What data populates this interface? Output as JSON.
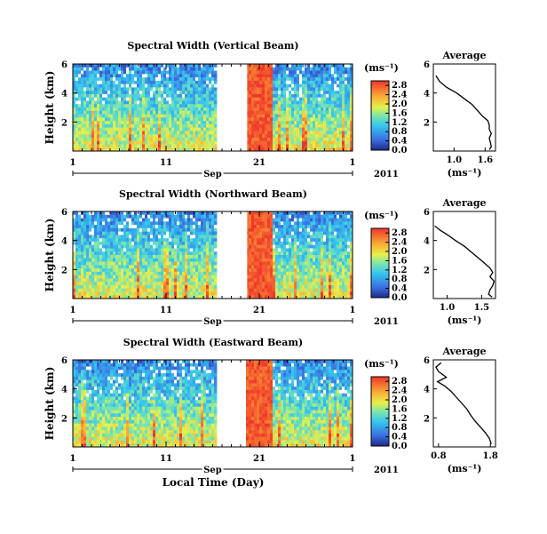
{
  "chart_data": [
    {
      "type": "heatmap",
      "title": "Spectral Width (Vertical Beam)",
      "ylabel": "Height (km)",
      "ylim": [
        0,
        6
      ],
      "yticks": [
        "6",
        "4",
        "2"
      ],
      "xticks": [
        "1",
        "11",
        "21",
        "1"
      ],
      "month_label": "Sep",
      "year_label": "2011",
      "data_gap_days": [
        15.5,
        18.7
      ],
      "colorbar": {
        "unit": "(ms⁻¹)",
        "ticks": [
          "2.8",
          "2.4",
          "2.0",
          "1.6",
          "1.2",
          "0.8",
          "0.4",
          "0.0"
        ],
        "range": [
          0,
          3.0
        ]
      },
      "average": {
        "title": "Average",
        "xlabel": "(ms⁻¹)",
        "xticks": [
          "1.0",
          "1.6"
        ],
        "xlim": [
          0.6,
          1.8
        ],
        "ylim": [
          0,
          6
        ],
        "yticks": [
          "6",
          "4",
          "2"
        ],
        "x": [
          0.65,
          0.72,
          0.85,
          1.05,
          1.2,
          1.35,
          1.45,
          1.55,
          1.65,
          1.68,
          1.68,
          1.72,
          1.68,
          1.7,
          1.72,
          1.68
        ],
        "y": [
          5.2,
          4.8,
          4.4,
          4.0,
          3.6,
          3.2,
          2.8,
          2.4,
          2.1,
          1.8,
          1.5,
          1.2,
          0.9,
          0.6,
          0.3,
          0.1
        ]
      }
    },
    {
      "type": "heatmap",
      "title": "Spectral Width (Northward Beam)",
      "ylabel": "Height (km)",
      "ylim": [
        0,
        6
      ],
      "yticks": [
        "6",
        "4",
        "2"
      ],
      "xticks": [
        "1",
        "11",
        "21",
        "1"
      ],
      "month_label": "Sep",
      "year_label": "2011",
      "data_gap_days": [
        15.5,
        18.7
      ],
      "colorbar": {
        "unit": "(ms⁻¹)",
        "ticks": [
          "2.8",
          "2.4",
          "2.0",
          "1.6",
          "1.2",
          "0.8",
          "0.4",
          "0.0"
        ],
        "range": [
          0,
          3.0
        ]
      },
      "average": {
        "title": "Average",
        "xlabel": "(ms⁻¹)",
        "xticks": [
          "1.0",
          "1.5"
        ],
        "xlim": [
          0.8,
          1.7
        ],
        "ylim": [
          0,
          6
        ],
        "yticks": [
          "6",
          "4",
          "2"
        ],
        "x": [
          0.82,
          0.9,
          1.0,
          1.12,
          1.25,
          1.35,
          1.45,
          1.55,
          1.62,
          1.66,
          1.62,
          1.68,
          1.66,
          1.62,
          1.6,
          1.65
        ],
        "y": [
          5.0,
          4.7,
          4.4,
          4.0,
          3.6,
          3.2,
          2.8,
          2.4,
          2.1,
          1.8,
          1.5,
          1.2,
          0.9,
          0.6,
          0.3,
          0.1
        ]
      }
    },
    {
      "type": "heatmap",
      "title": "Spectral Width (Eastward Beam)",
      "ylabel": "Height (km)",
      "ylim": [
        0,
        6
      ],
      "yticks": [
        "6",
        "4",
        "2"
      ],
      "xticks": [
        "1",
        "11",
        "21",
        "1"
      ],
      "month_label": "Sep",
      "year_label": "2011",
      "data_gap_days": [
        15.5,
        18.5
      ],
      "colorbar": {
        "unit": "(ms⁻¹)",
        "ticks": [
          "2.8",
          "2.4",
          "2.0",
          "1.6",
          "1.2",
          "0.8",
          "0.4",
          "0.0"
        ],
        "range": [
          0,
          3.0
        ]
      },
      "average": {
        "title": "Average",
        "xlabel": "(ms⁻¹)",
        "xticks": [
          "0.8",
          "1.8"
        ],
        "xlim": [
          0.7,
          1.9
        ],
        "ylim": [
          0,
          6
        ],
        "yticks": [
          "6",
          "4",
          "2"
        ],
        "x": [
          0.85,
          0.75,
          0.8,
          0.95,
          0.78,
          0.92,
          1.05,
          1.15,
          1.25,
          1.35,
          1.42,
          1.5,
          1.6,
          1.7,
          1.78,
          1.82
        ],
        "y": [
          5.8,
          5.5,
          5.2,
          4.8,
          4.5,
          4.2,
          3.8,
          3.4,
          3.0,
          2.6,
          2.2,
          1.8,
          1.4,
          1.0,
          0.6,
          0.2
        ]
      }
    }
  ],
  "footer": {
    "xlabel": "Local Time (Day)"
  }
}
